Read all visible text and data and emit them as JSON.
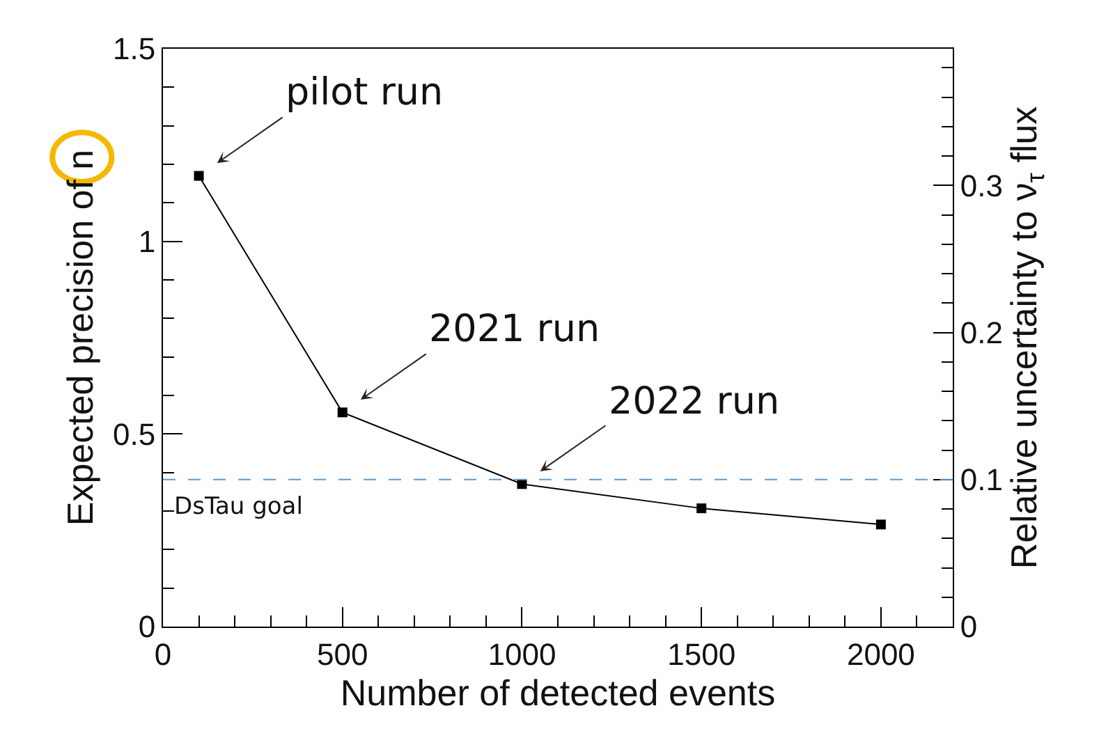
{
  "chart_data": {
    "type": "line",
    "xlabel": "Number of detected events",
    "ylabel": "Expected precision of n",
    "y2label": "Relative uncertainty to ν$_{τ}$ flux",
    "x": [
      100,
      500,
      1000,
      1500,
      2000
    ],
    "series": [
      {
        "color": "#000000",
        "values": [
          1.17,
          0.556,
          0.37,
          0.307,
          0.265
        ]
      }
    ],
    "marker": "square",
    "line_style": "solid",
    "xlim": [
      0,
      2200
    ],
    "xticks": [
      0,
      500,
      1000,
      1500,
      2000
    ],
    "ylim": [
      0,
      1.5
    ],
    "yticks": [
      0,
      0.5,
      1,
      1.5
    ],
    "y2lim": [
      0,
      0.393
    ],
    "y2ticks": [
      0,
      0.1,
      0.2,
      0.3
    ],
    "ref_lines": [
      {
        "axis": "y2",
        "value": 0.1,
        "label": "DsTau goal",
        "color": "#5b9bd5",
        "line_style": "dashed"
      }
    ],
    "annotations": [
      {
        "text": "pilot run",
        "x": 100,
        "y": 1.17
      },
      {
        "text": "2021 run",
        "x": 500,
        "y": 0.556
      },
      {
        "text": "2022 run",
        "x": 1000,
        "y": 0.37
      }
    ]
  }
}
